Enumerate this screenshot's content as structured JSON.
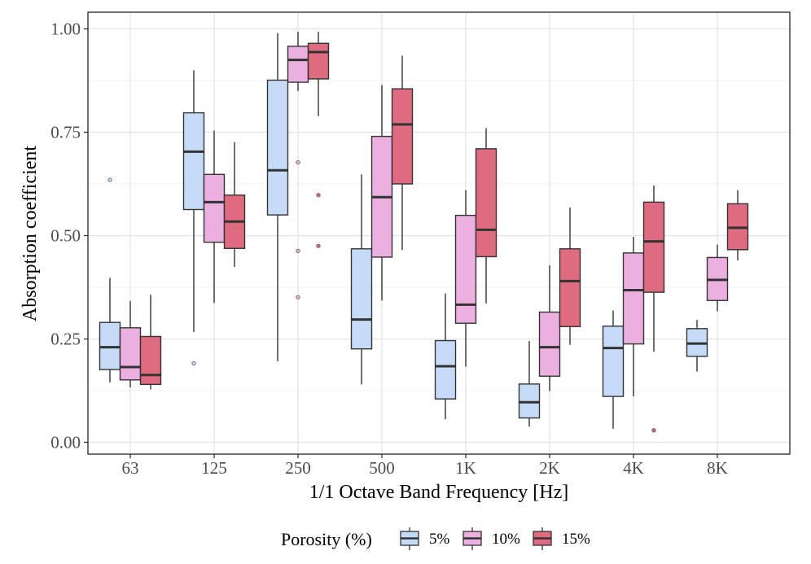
{
  "chart_data": {
    "type": "boxplot",
    "xlabel": "1/1 Octave Band Frequency [Hz]",
    "ylabel": "Absorption coefficient",
    "ylim": [
      -0.03,
      1.04
    ],
    "yticks": [
      "0.00",
      "0.25",
      "0.50",
      "0.75",
      "1.00"
    ],
    "ytick_values": [
      0,
      0.25,
      0.5,
      0.75,
      1.0
    ],
    "categories": [
      "63",
      "125",
      "250",
      "500",
      "1K",
      "2K",
      "4K",
      "8K"
    ],
    "grid": true,
    "legend": {
      "title": "Porosity (%)",
      "placement": "bottom"
    },
    "series": [
      {
        "name": "5%",
        "color": "#c6dbf7",
        "boxes": [
          {
            "whisker_low": 0.145,
            "q1": 0.176,
            "median": 0.23,
            "q3": 0.29,
            "whisker_high": 0.398,
            "outliers": [
              0.635
            ]
          },
          {
            "whisker_low": 0.267,
            "q1": 0.563,
            "median": 0.703,
            "q3": 0.797,
            "whisker_high": 0.9,
            "outliers": [
              0.191
            ]
          },
          {
            "whisker_low": 0.196,
            "q1": 0.55,
            "median": 0.658,
            "q3": 0.876,
            "whisker_high": 0.99,
            "outliers": []
          },
          {
            "whisker_low": 0.14,
            "q1": 0.226,
            "median": 0.297,
            "q3": 0.468,
            "whisker_high": 0.648,
            "outliers": []
          },
          {
            "whisker_low": 0.056,
            "q1": 0.105,
            "median": 0.184,
            "q3": 0.246,
            "whisker_high": 0.36,
            "outliers": []
          },
          {
            "whisker_low": 0.038,
            "q1": 0.059,
            "median": 0.097,
            "q3": 0.141,
            "whisker_high": 0.245,
            "outliers": []
          },
          {
            "whisker_low": 0.033,
            "q1": 0.111,
            "median": 0.228,
            "q3": 0.281,
            "whisker_high": 0.319,
            "outliers": []
          },
          {
            "whisker_low": 0.171,
            "q1": 0.208,
            "median": 0.239,
            "q3": 0.275,
            "whisker_high": 0.296,
            "outliers": []
          }
        ]
      },
      {
        "name": "10%",
        "color": "#ebb0df",
        "boxes": [
          {
            "whisker_low": 0.133,
            "q1": 0.151,
            "median": 0.182,
            "q3": 0.277,
            "whisker_high": 0.342,
            "outliers": []
          },
          {
            "whisker_low": 0.337,
            "q1": 0.484,
            "median": 0.581,
            "q3": 0.648,
            "whisker_high": 0.754,
            "outliers": []
          },
          {
            "whisker_low": 0.85,
            "q1": 0.871,
            "median": 0.925,
            "q3": 0.958,
            "whisker_high": 0.993,
            "outliers": [
              0.677,
              0.463,
              0.351
            ]
          },
          {
            "whisker_low": 0.343,
            "q1": 0.448,
            "median": 0.593,
            "q3": 0.74,
            "whisker_high": 0.864,
            "outliers": []
          },
          {
            "whisker_low": 0.183,
            "q1": 0.288,
            "median": 0.333,
            "q3": 0.549,
            "whisker_high": 0.61,
            "outliers": []
          },
          {
            "whisker_low": 0.124,
            "q1": 0.16,
            "median": 0.23,
            "q3": 0.315,
            "whisker_high": 0.428,
            "outliers": []
          },
          {
            "whisker_low": 0.111,
            "q1": 0.238,
            "median": 0.368,
            "q3": 0.458,
            "whisker_high": 0.497,
            "outliers": []
          },
          {
            "whisker_low": 0.317,
            "q1": 0.343,
            "median": 0.393,
            "q3": 0.447,
            "whisker_high": 0.478,
            "outliers": []
          }
        ]
      },
      {
        "name": "15%",
        "color": "#de6b80",
        "boxes": [
          {
            "whisker_low": 0.128,
            "q1": 0.14,
            "median": 0.163,
            "q3": 0.256,
            "whisker_high": 0.357,
            "outliers": []
          },
          {
            "whisker_low": 0.424,
            "q1": 0.469,
            "median": 0.534,
            "q3": 0.598,
            "whisker_high": 0.726,
            "outliers": []
          },
          {
            "whisker_low": 0.789,
            "q1": 0.879,
            "median": 0.944,
            "q3": 0.965,
            "whisker_high": 0.993,
            "outliers": [
              0.598,
              0.475
            ]
          },
          {
            "whisker_low": 0.465,
            "q1": 0.625,
            "median": 0.769,
            "q3": 0.855,
            "whisker_high": 0.935,
            "outliers": []
          },
          {
            "whisker_low": 0.336,
            "q1": 0.449,
            "median": 0.514,
            "q3": 0.71,
            "whisker_high": 0.76,
            "outliers": []
          },
          {
            "whisker_low": 0.236,
            "q1": 0.28,
            "median": 0.39,
            "q3": 0.468,
            "whisker_high": 0.568,
            "outliers": []
          },
          {
            "whisker_low": 0.219,
            "q1": 0.363,
            "median": 0.486,
            "q3": 0.581,
            "whisker_high": 0.621,
            "outliers": [
              0.029
            ]
          },
          {
            "whisker_low": 0.44,
            "q1": 0.466,
            "median": 0.519,
            "q3": 0.577,
            "whisker_high": 0.61,
            "outliers": []
          }
        ]
      }
    ]
  }
}
